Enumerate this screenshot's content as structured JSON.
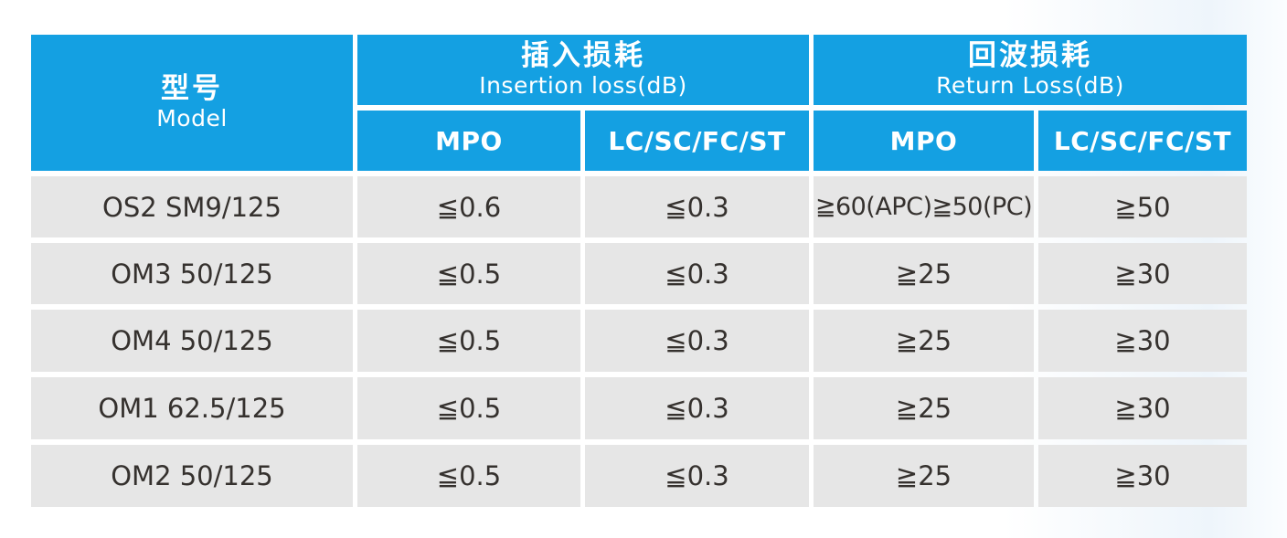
{
  "chart_data": {
    "type": "table",
    "title": "",
    "columns": [
      "型号 Model",
      "插入损耗 Insertion loss(dB) - MPO",
      "插入损耗 Insertion loss(dB) - LC/SC/FC/ST",
      "回波损耗 Return Loss(dB) - MPO",
      "回波损耗 Return Loss(dB) - LC/SC/FC/ST"
    ],
    "rows": [
      [
        "OS2 SM9/125",
        "≦0.6",
        "≦0.3",
        "≧60(APC)≧50(PC)",
        "≧50"
      ],
      [
        "OM3 50/125",
        "≦0.5",
        "≦0.3",
        "≧25",
        "≧30"
      ],
      [
        "OM4 50/125",
        "≦0.5",
        "≦0.3",
        "≧25",
        "≧30"
      ],
      [
        "OM1 62.5/125",
        "≦0.5",
        "≦0.3",
        "≧25",
        "≧30"
      ],
      [
        "OM2 50/125",
        "≦0.5",
        "≦0.3",
        "≧25",
        "≧30"
      ]
    ]
  },
  "table": {
    "model_header": {
      "zh": "型号",
      "en": "Model"
    },
    "groups": {
      "insertion": {
        "zh": "插入损耗",
        "en": "Insertion loss(dB)"
      },
      "return": {
        "zh": "回波损耗",
        "en": "Return Loss(dB)"
      }
    },
    "subheaders": {
      "insertion_mpo": "MPO",
      "insertion_lc": "LC/SC/FC/ST",
      "return_mpo": "MPO",
      "return_lc": "LC/SC/FC/ST"
    },
    "rows": [
      {
        "model": "OS2 SM9/125",
        "values": [
          "≦0.6",
          "≦0.3",
          "≧60(APC)≧50(PC)",
          "≧50"
        ]
      },
      {
        "model": "OM3 50/125",
        "values": [
          "≦0.5",
          "≦0.3",
          "≧25",
          "≧30"
        ]
      },
      {
        "model": "OM4 50/125",
        "values": [
          "≦0.5",
          "≦0.3",
          "≧25",
          "≧30"
        ]
      },
      {
        "model": "OM1 62.5/125",
        "values": [
          "≦0.5",
          "≦0.3",
          "≧25",
          "≧30"
        ]
      },
      {
        "model": "OM2 50/125",
        "values": [
          "≦0.5",
          "≦0.3",
          "≧25",
          "≧30"
        ]
      }
    ],
    "colors": {
      "header_blue": "#14A0E2",
      "row_gray": "#E6E6E6",
      "text_dark": "#35312E",
      "header_text": "#FFFFFF",
      "divider_white": "#FFFFFF"
    }
  }
}
